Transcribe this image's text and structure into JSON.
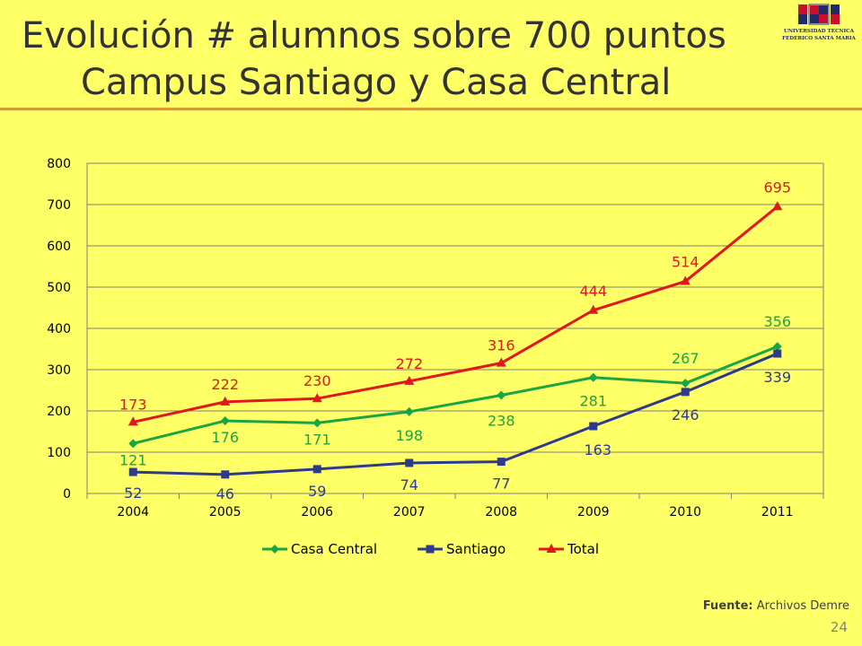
{
  "slide": {
    "title_line1": "Evolución # alumnos sobre 700 puntos",
    "title_line2": "Campus Santiago y Casa Central",
    "logo_line1": "UNIVERSIDAD TECNICA",
    "logo_line2": "FEDERICO SANTA MARIA",
    "source_label": "Fuente:",
    "source_text": "Archivos Demre",
    "page_number": "24"
  },
  "colors": {
    "background": "#ffff66",
    "casa_central": "#1aa543",
    "santiago": "#2e3a8c",
    "total": "#e0171b",
    "grid": "#7f7f7f"
  },
  "chart_data": {
    "type": "line",
    "categories": [
      "2004",
      "2005",
      "2006",
      "2007",
      "2008",
      "2009",
      "2010",
      "2011"
    ],
    "ylim": [
      0,
      800
    ],
    "yticks": [
      "0",
      "100",
      "200",
      "300",
      "400",
      "500",
      "600",
      "700",
      "800"
    ],
    "grid": true,
    "legend_position": "bottom",
    "series": [
      {
        "name": "Casa Central",
        "marker": "diamond",
        "values": [
          121,
          176,
          171,
          198,
          238,
          281,
          267,
          356
        ]
      },
      {
        "name": "Santiago",
        "marker": "square",
        "values": [
          52,
          46,
          59,
          74,
          77,
          163,
          246,
          339
        ]
      },
      {
        "name": "Total",
        "marker": "triangle",
        "values": [
          173,
          222,
          230,
          272,
          316,
          444,
          514,
          695
        ]
      }
    ]
  }
}
